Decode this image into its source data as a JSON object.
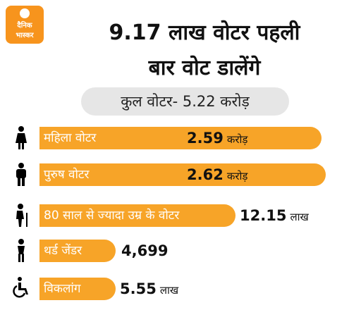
{
  "logo": {
    "line1": "दैनिक",
    "line2": "भास्कर"
  },
  "header": {
    "title_lines": [
      "9.17 लाख वोटर पहली",
      "बार वोट डालेंगे"
    ],
    "subtitle": "कुल वोटर-  5.22 करोड़"
  },
  "rows": [
    {
      "label": "महिला वोटर",
      "value": "2.59",
      "unit": "करोड़"
    },
    {
      "label": "पुरुष वोटर",
      "value": "2.62",
      "unit": "करोड़"
    },
    {
      "label": "80 साल से ज्यादा उम्र के वोटर",
      "value": "12.15",
      "unit": "लाख"
    },
    {
      "label": "थर्ड जेंडर",
      "value": "4,699",
      "unit": null
    },
    {
      "label": "विकलांग",
      "value": "5.55",
      "unit": "लाख"
    }
  ]
}
